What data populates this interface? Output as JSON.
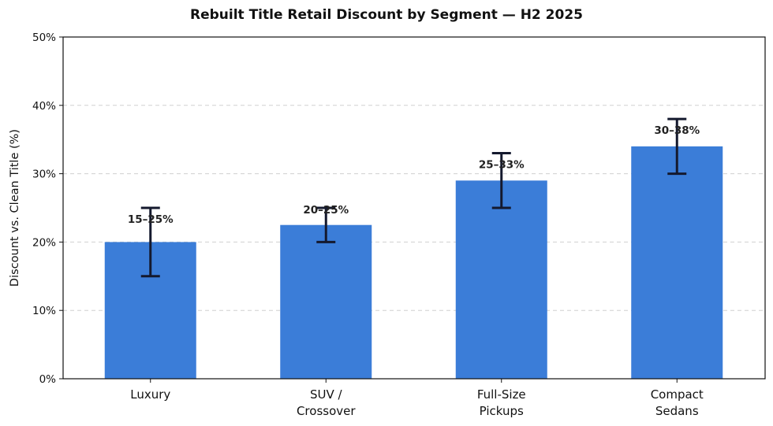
{
  "chart_data": {
    "type": "bar",
    "title": "Rebuilt Title Retail Discount by Segment — H2 2025",
    "xlabel": "",
    "ylabel": "Discount vs. Clean Title (%)",
    "ylim": [
      0,
      50
    ],
    "yticks": [
      "0%",
      "10%",
      "20%",
      "30%",
      "40%",
      "50%"
    ],
    "grid": "horizontal dashed",
    "categories": [
      "Luxury",
      "SUV / Crossover",
      "Full-Size Pickups",
      "Compact Sedans"
    ],
    "category_lines": [
      [
        "Luxury"
      ],
      [
        "SUV /",
        "Crossover"
      ],
      [
        "Full-Size",
        "Pickups"
      ],
      [
        "Compact",
        "Sedans"
      ]
    ],
    "values": [
      20,
      22.5,
      29,
      34
    ],
    "error_low": [
      15,
      20,
      25,
      30
    ],
    "error_high": [
      25,
      25,
      33,
      38
    ],
    "bar_labels": [
      "15–25%",
      "20–25%",
      "25–33%",
      "30–38%"
    ],
    "bar_color": "#3b7dd8",
    "error_color": "#14192e"
  }
}
